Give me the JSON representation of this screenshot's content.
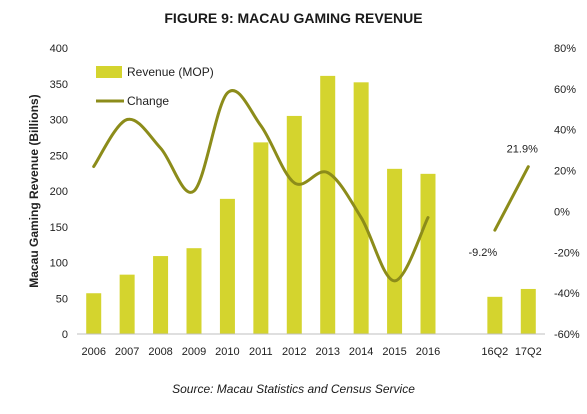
{
  "chart_data": {
    "type": "bar",
    "title": "FIGURE 9: MACAU GAMING REVENUE",
    "source": "Source: Macau Statistics and Census Service",
    "ylabel": "Macau Gaming Revenue (Billions)",
    "ylim": [
      0,
      400
    ],
    "y_ticks": [
      "0",
      "50",
      "100",
      "150",
      "200",
      "250",
      "300",
      "350",
      "400"
    ],
    "y2lim": [
      -60,
      80
    ],
    "y2_ticks": [
      "-60%",
      "-40%",
      "-20%",
      "0%",
      "20%",
      "40%",
      "60%",
      "80%"
    ],
    "legend_position": "top-left",
    "grid": false,
    "categories": [
      "2006",
      "2007",
      "2008",
      "2009",
      "2010",
      "2011",
      "2012",
      "2013",
      "2014",
      "2015",
      "2016",
      "",
      "16Q2",
      "17Q2"
    ],
    "series": [
      {
        "name": "Revenue (MOP)",
        "type": "bar",
        "axis": "left",
        "color": "#d4d42e",
        "values": [
          57,
          83,
          109,
          120,
          189,
          268,
          305,
          361,
          352,
          231,
          224,
          null,
          52,
          63
        ]
      },
      {
        "name": "Change",
        "type": "line",
        "axis": "right",
        "color": "#8c8c1a",
        "segments": [
          {
            "categories": [
              "2006",
              "2007",
              "2008",
              "2009",
              "2010",
              "2011",
              "2012",
              "2013",
              "2014",
              "2015",
              "2016"
            ],
            "values": [
              22,
              45,
              31,
              10,
              58,
              42,
              14,
              19,
              -3,
              -34,
              -3
            ]
          },
          {
            "categories": [
              "16Q2",
              "17Q2"
            ],
            "values": [
              -9.2,
              21.9
            ]
          }
        ]
      }
    ],
    "annotations": [
      {
        "text": "-9.2%",
        "category": "16Q2",
        "value": -9.2
      },
      {
        "text": "21.9%",
        "category": "17Q2",
        "value": 21.9
      }
    ]
  }
}
